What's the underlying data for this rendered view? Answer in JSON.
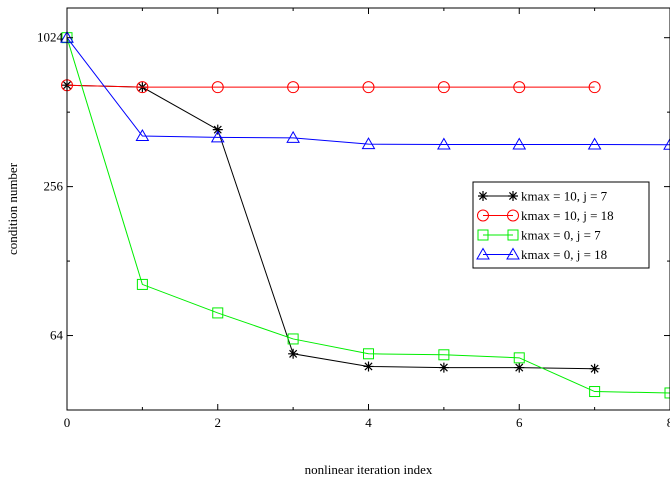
{
  "chart_data": {
    "type": "line",
    "xlabel": "nonlinear iteration index",
    "ylabel": "condition number",
    "xlim": [
      0,
      8
    ],
    "ylim": [
      32,
      1350
    ],
    "yscale": "log2",
    "xticks": [
      0,
      2,
      4,
      6,
      8
    ],
    "xtick_labels": [
      "0",
      "2",
      "4",
      "6",
      "8"
    ],
    "yticks": [
      64,
      256,
      1024
    ],
    "ytick_labels": [
      "64",
      "256",
      "1024"
    ],
    "grid": false,
    "legend_position": "right",
    "series": [
      {
        "name": "kmax = 10, j = 7",
        "color": "#000000",
        "marker": "star",
        "x": [
          0,
          1,
          2,
          3,
          4,
          5,
          6,
          7
        ],
        "y": [
          658,
          646,
          435,
          54,
          48,
          47.5,
          47.5,
          47
        ]
      },
      {
        "name": "kmax = 10, j = 18",
        "color": "#ff0000",
        "marker": "circle",
        "x": [
          0,
          1,
          2,
          3,
          4,
          5,
          6,
          7
        ],
        "y": [
          658,
          646,
          646,
          646,
          646,
          646,
          646,
          646
        ]
      },
      {
        "name": "kmax = 0, j = 7",
        "color": "#00ee00",
        "marker": "square",
        "x": [
          0,
          1,
          2,
          3,
          4,
          5,
          6,
          7,
          8
        ],
        "y": [
          1024,
          103,
          79,
          62,
          54,
          53.5,
          52,
          38,
          37.5
        ]
      },
      {
        "name": "kmax = 0, j = 18",
        "color": "#0000ff",
        "marker": "triangle",
        "x": [
          0,
          1,
          2,
          3,
          4,
          5,
          6,
          7,
          8
        ],
        "y": [
          1024,
          410,
          405,
          403,
          380,
          379,
          379,
          379,
          378
        ]
      }
    ]
  }
}
